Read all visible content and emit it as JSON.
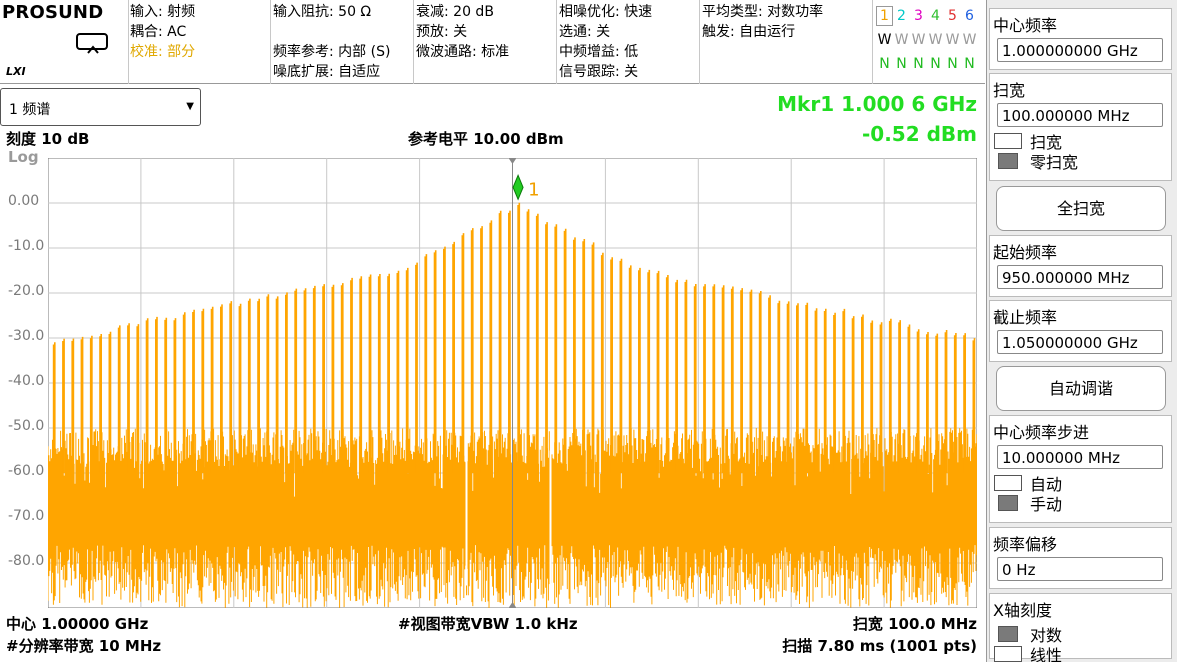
{
  "header": {
    "brand": "PROSUND",
    "lxi": "LXI",
    "col1": {
      "l1": "输入: 射频",
      "l2": "耦合: AC",
      "l3": "校准: 部分"
    },
    "col2": {
      "l1": "输入阻抗: 50 Ω",
      "l2": "频率参考: 内部 (S)",
      "l3": "噪底扩展: 自适应"
    },
    "col3": {
      "l1": "衰减: 20 dB",
      "l2": "预放: 关",
      "l3": "微波通路: 标准"
    },
    "col4": {
      "l1": "相噪优化: 快速",
      "l2": "选通: 关",
      "l3": "中频增益: 低",
      "l4": "信号跟踪: 关"
    },
    "col5": {
      "l1": "平均类型: 对数功率",
      "l2": "触发: 自由运行"
    },
    "traces": {
      "numbers": [
        "1",
        "2",
        "3",
        "4",
        "5",
        "6"
      ],
      "types": [
        "W",
        "W",
        "W",
        "W",
        "W",
        "W"
      ],
      "dets": [
        "N",
        "N",
        "N",
        "N",
        "N",
        "N"
      ],
      "colors": [
        "#f0a000",
        "#00c8c8",
        "#e000c0",
        "#30c030",
        "#e03030",
        "#2060e0"
      ]
    }
  },
  "view_select": "1 频谱",
  "marker": {
    "label": "Mkr1  1.000 6 GHz",
    "value": "-0.52 dBm",
    "id": "1"
  },
  "scale_label": "刻度 10 dB",
  "ref_level": "参考电平 10.00 dBm",
  "log_label": "Log",
  "footer": {
    "center": "中心 1.00000 GHz",
    "rbw": "#分辨率带宽 10 MHz",
    "vbw": "#视图带宽VBW 1.0 kHz",
    "span": "扫宽 100.0 MHz",
    "sweep": "扫描 7.80 ms (1001 pts)"
  },
  "chart_data": {
    "type": "line",
    "yticks": [
      "0.00",
      "-10.0",
      "-20.0",
      "-30.0",
      "-40.0",
      "-50.0",
      "-60.0",
      "-70.0",
      "-80.0"
    ],
    "ylim": [
      -90,
      10
    ],
    "xlim_ghz": [
      0.95,
      1.05
    ],
    "trace_color": "#ffa500",
    "noise_floor_dbm": [
      -88,
      -54
    ],
    "comb_spacing_mhz": 1.0,
    "peak_center_ghz": 1.0006,
    "peak_level_dbm": -0.52,
    "edge_level_dbm": -31,
    "marker_x_ghz": 1.0006
  },
  "softkeys": {
    "center_freq": {
      "title": "中心频率",
      "value": "1.000000000 GHz"
    },
    "span": {
      "title": "扫宽",
      "value": "100.000000 MHz",
      "opt1": "扫宽",
      "opt2": "零扫宽"
    },
    "full_span": "全扫宽",
    "start_freq": {
      "title": "起始频率",
      "value": "950.000000 MHz"
    },
    "stop_freq": {
      "title": "截止频率",
      "value": "1.050000000 GHz"
    },
    "auto_tune": "自动调谐",
    "step": {
      "title": "中心频率步进",
      "value": "10.000000 MHz",
      "opt1": "自动",
      "opt2": "手动"
    },
    "offset": {
      "title": "频率偏移",
      "value": "0 Hz"
    },
    "xscale": {
      "title": "X轴刻度",
      "opt1": "对数",
      "opt2": "线性"
    }
  }
}
